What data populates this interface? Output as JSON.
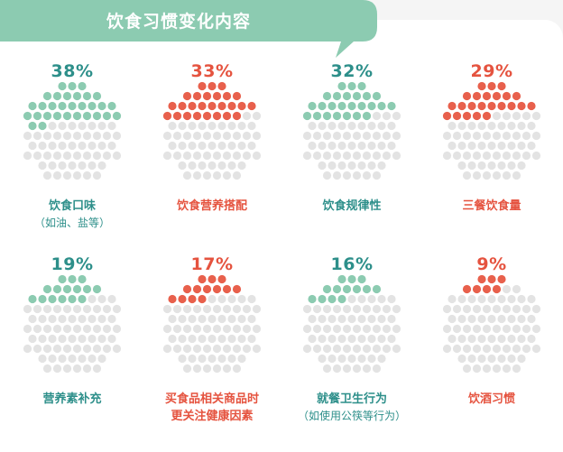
{
  "header": {
    "title": "饮食习惯变化内容"
  },
  "colors": {
    "green": "#8ccbb1",
    "red": "#e8604c",
    "grey": "#e3e3e3",
    "green_text": "#2d8f8a",
    "red_text": "#e5533f",
    "banner": "#8ccbb1"
  },
  "chart_data": {
    "type": "dot-matrix",
    "items": [
      {
        "value": 38,
        "label": "38%",
        "title": "饮食口味",
        "subtitle": "（如油、盐等）",
        "color": "green"
      },
      {
        "value": 33,
        "label": "33%",
        "title": "饮食营养搭配",
        "subtitle": "",
        "color": "red"
      },
      {
        "value": 32,
        "label": "32%",
        "title": "饮食规律性",
        "subtitle": "",
        "color": "green"
      },
      {
        "value": 29,
        "label": "29%",
        "title": "三餐饮食量",
        "subtitle": "",
        "color": "red"
      },
      {
        "value": 19,
        "label": "19%",
        "title": "营养素补充",
        "subtitle": "",
        "color": "green"
      },
      {
        "value": 17,
        "label": "17%",
        "title": "买食品相关商品时",
        "subtitle": "更关注健康因素",
        "color": "red"
      },
      {
        "value": 16,
        "label": "16%",
        "title": "就餐卫生行为",
        "subtitle": "（如使用公筷等行为）",
        "color": "green"
      },
      {
        "value": 9,
        "label": "9%",
        "title": "饮酒习惯",
        "subtitle": "",
        "color": "red"
      }
    ]
  }
}
